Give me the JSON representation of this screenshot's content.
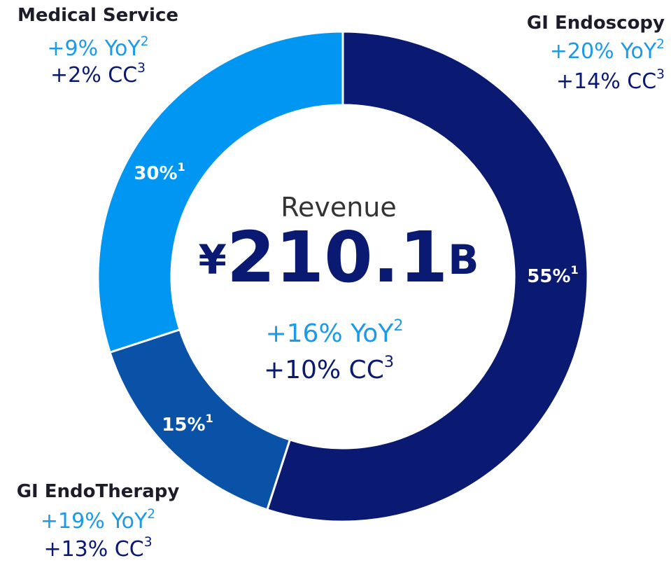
{
  "chart_data": {
    "type": "donut",
    "categories": [
      "GI Endoscopy",
      "GI EndoTherapy",
      "Medical Service"
    ],
    "values": [
      55,
      15,
      30
    ],
    "value_labels": [
      "55%",
      "15%",
      "30%"
    ],
    "value_note": "1",
    "colors": [
      "#0a1a72",
      "#0a52a8",
      "#0096f2"
    ],
    "annotations": [
      {
        "yoy": "+20% YoY",
        "yoy_note": "2",
        "cc": "+14% CC",
        "cc_note": "3"
      },
      {
        "yoy": "+19% YoY",
        "yoy_note": "2",
        "cc": "+13% CC",
        "cc_note": "3"
      },
      {
        "yoy": "+9% YoY",
        "yoy_note": "2",
        "cc": "+2% CC",
        "cc_note": "3"
      }
    ],
    "center": {
      "label": "Revenue",
      "prefix": "¥",
      "total": "210.1",
      "suffix": "B",
      "yoy": "+16% YoY",
      "yoy_note": "2",
      "cc": "+10% CC",
      "cc_note": "3"
    }
  }
}
